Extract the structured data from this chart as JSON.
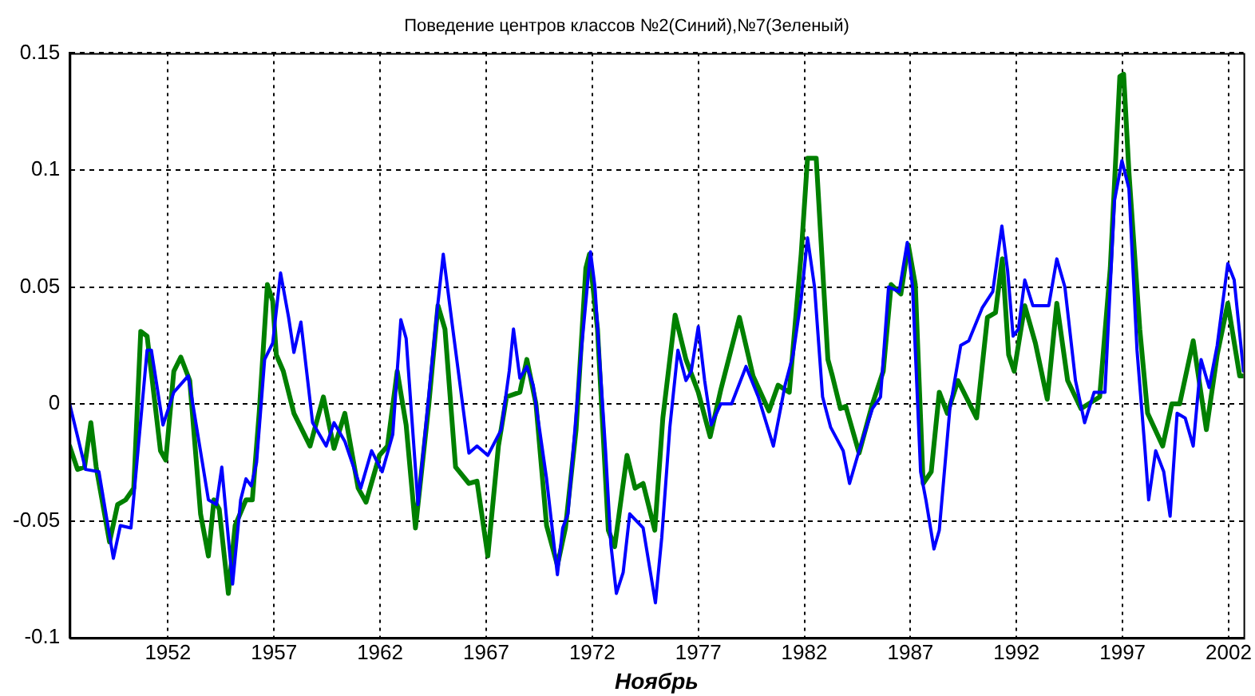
{
  "chart_data": {
    "type": "line",
    "title": "Поведение центров классов №2(Синий),№7(Зеленый)",
    "xlabel": "Ноябрь",
    "xlim": [
      1947.37,
      2002.7
    ],
    "xticks": [
      1952,
      1957,
      1962,
      1967,
      1972,
      1977,
      1982,
      1987,
      1992,
      1997,
      2002
    ],
    "ylim": [
      -0.1,
      0.15
    ],
    "yticks": [
      -0.1,
      -0.05,
      0,
      0.05,
      0.1,
      0.15
    ],
    "grid": true,
    "line_style": "solid",
    "series": [
      {
        "color": "#0000ff",
        "x": [
          1947.37,
          1948.12,
          1948.75,
          1949.43,
          1949.76,
          1950.26,
          1951.02,
          1951.22,
          1951.77,
          1952.28,
          1952.96,
          1953.91,
          1954.29,
          1954.54,
          1955.05,
          1955.43,
          1955.68,
          1955.93,
          1956.18,
          1956.56,
          1956.94,
          1957.31,
          1957.69,
          1957.94,
          1958.27,
          1958.82,
          1959.46,
          1959.83,
          1960.34,
          1961.09,
          1961.6,
          1962.1,
          1962.6,
          1962.98,
          1963.23,
          1963.79,
          1964.68,
          1964.98,
          1965.43,
          1966.19,
          1966.57,
          1967.08,
          1967.71,
          1968.09,
          1968.29,
          1968.59,
          1968.92,
          1969.22,
          1969.85,
          1970.36,
          1970.61,
          1970.86,
          1971.49,
          1971.92,
          1972.13,
          1972.63,
          1972.88,
          1973.14,
          1973.46,
          1973.77,
          1974.4,
          1974.98,
          1975.28,
          1975.66,
          1976.04,
          1976.42,
          1976.67,
          1977.0,
          1977.3,
          1977.61,
          1978.06,
          1978.57,
          1979.25,
          1979.83,
          1980.54,
          1981.09,
          1981.47,
          1981.85,
          1982.15,
          1982.48,
          1982.86,
          1983.24,
          1983.83,
          1984.13,
          1984.58,
          1985.21,
          1985.59,
          1985.97,
          1986.47,
          1986.85,
          1987.1,
          1987.48,
          1987.73,
          1988.11,
          1988.36,
          1988.86,
          1989.37,
          1989.75,
          1990.38,
          1990.88,
          1991.31,
          1991.58,
          1991.84,
          1992.09,
          1992.39,
          1992.77,
          1993.52,
          1993.9,
          1994.28,
          1994.78,
          1995.21,
          1995.66,
          1996.17,
          1996.62,
          1996.97,
          1997.3,
          1997.68,
          1998.06,
          1998.23,
          1998.56,
          1998.94,
          1999.24,
          1999.57,
          1999.95,
          2000.33,
          2000.7,
          2001.08,
          2001.46,
          2001.96,
          2002.26,
          2002.7
        ],
        "values": [
          0.0,
          -0.028,
          -0.029,
          -0.066,
          -0.052,
          -0.053,
          0.023,
          0.023,
          -0.009,
          0.005,
          0.012,
          -0.041,
          -0.043,
          -0.027,
          -0.077,
          -0.041,
          -0.032,
          -0.035,
          -0.025,
          0.019,
          0.026,
          0.056,
          0.037,
          0.022,
          0.035,
          -0.008,
          -0.018,
          -0.008,
          -0.016,
          -0.036,
          -0.02,
          -0.029,
          -0.013,
          0.036,
          0.028,
          -0.043,
          0.039,
          0.064,
          0.032,
          -0.021,
          -0.018,
          -0.022,
          -0.011,
          0.014,
          0.032,
          0.011,
          0.016,
          0.008,
          -0.032,
          -0.073,
          -0.053,
          -0.047,
          0.023,
          0.065,
          0.05,
          -0.02,
          -0.06,
          -0.081,
          -0.072,
          -0.047,
          -0.053,
          -0.085,
          -0.057,
          -0.01,
          0.023,
          0.01,
          0.014,
          0.033,
          0.01,
          -0.009,
          0.0,
          0.0,
          0.016,
          0.003,
          -0.018,
          0.008,
          0.021,
          0.045,
          0.071,
          0.05,
          0.003,
          -0.01,
          -0.02,
          -0.034,
          -0.02,
          -0.002,
          0.003,
          0.05,
          0.048,
          0.069,
          0.05,
          -0.029,
          -0.041,
          -0.062,
          -0.054,
          -0.002,
          0.025,
          0.027,
          0.041,
          0.048,
          0.076,
          0.057,
          0.029,
          0.032,
          0.053,
          0.042,
          0.042,
          0.062,
          0.05,
          0.01,
          -0.008,
          0.005,
          0.005,
          0.087,
          0.104,
          0.092,
          0.023,
          -0.02,
          -0.041,
          -0.02,
          -0.029,
          -0.048,
          -0.004,
          -0.006,
          -0.018,
          0.019,
          0.007,
          0.025,
          0.06,
          0.053,
          0.014
        ]
      },
      {
        "color": "#008000",
        "x": [
          1947.37,
          1947.74,
          1948.07,
          1948.37,
          1948.62,
          1949.25,
          1949.63,
          1950.01,
          1950.39,
          1950.72,
          1951.02,
          1951.65,
          1951.9,
          1952.28,
          1952.61,
          1953.03,
          1953.54,
          1953.91,
          1954.17,
          1954.42,
          1954.85,
          1955.17,
          1955.68,
          1955.98,
          1956.31,
          1956.69,
          1956.94,
          1957.11,
          1957.44,
          1957.94,
          1958.7,
          1959.33,
          1959.83,
          1960.34,
          1960.97,
          1961.34,
          1961.97,
          1962.35,
          1962.81,
          1963.23,
          1963.67,
          1964.3,
          1964.73,
          1965.06,
          1965.56,
          1966.19,
          1966.57,
          1967.08,
          1967.58,
          1967.96,
          1968.59,
          1968.92,
          1969.35,
          1969.85,
          1970.36,
          1970.74,
          1971.24,
          1971.7,
          1971.87,
          1972.25,
          1972.76,
          1973.06,
          1973.64,
          1974.02,
          1974.4,
          1974.95,
          1975.33,
          1975.91,
          1976.42,
          1977.0,
          1977.56,
          1978.06,
          1978.94,
          1979.58,
          1980.33,
          1980.76,
          1981.29,
          1981.85,
          1982.15,
          1982.56,
          1983.11,
          1983.32,
          1983.7,
          1983.95,
          1984.58,
          1985.21,
          1985.72,
          1986.09,
          1986.55,
          1986.9,
          1987.23,
          1987.6,
          1987.98,
          1988.36,
          1988.74,
          1989.24,
          1990.12,
          1990.63,
          1991.01,
          1991.33,
          1991.63,
          1991.89,
          1992.39,
          1992.89,
          1993.45,
          1993.9,
          1994.41,
          1995.04,
          1995.92,
          1996.42,
          1996.87,
          1997.05,
          1997.3,
          1997.81,
          1998.18,
          1998.89,
          1999.32,
          1999.69,
          2000.33,
          2000.95,
          2001.46,
          2001.96,
          2002.52,
          2002.7
        ],
        "values": [
          -0.018,
          -0.028,
          -0.027,
          -0.008,
          -0.027,
          -0.059,
          -0.043,
          -0.041,
          -0.036,
          0.031,
          0.029,
          -0.02,
          -0.024,
          0.014,
          0.02,
          0.01,
          -0.047,
          -0.065,
          -0.041,
          -0.045,
          -0.081,
          -0.052,
          -0.041,
          -0.041,
          -0.003,
          0.051,
          0.044,
          0.021,
          0.014,
          -0.004,
          -0.018,
          0.003,
          -0.019,
          -0.004,
          -0.036,
          -0.042,
          -0.022,
          -0.018,
          0.014,
          -0.009,
          -0.053,
          0.0,
          0.042,
          0.032,
          -0.027,
          -0.034,
          -0.033,
          -0.065,
          -0.018,
          0.003,
          0.005,
          0.019,
          0.0,
          -0.052,
          -0.069,
          -0.053,
          -0.011,
          0.058,
          0.064,
          0.032,
          -0.054,
          -0.061,
          -0.022,
          -0.036,
          -0.034,
          -0.054,
          -0.006,
          0.038,
          0.019,
          0.005,
          -0.014,
          0.006,
          0.037,
          0.012,
          -0.003,
          0.008,
          0.005,
          0.064,
          0.105,
          0.105,
          0.019,
          0.012,
          -0.002,
          -0.001,
          -0.021,
          0.0,
          0.014,
          0.051,
          0.047,
          0.068,
          0.051,
          -0.034,
          -0.029,
          0.005,
          -0.004,
          0.01,
          -0.006,
          0.037,
          0.039,
          0.062,
          0.021,
          0.014,
          0.042,
          0.026,
          0.002,
          0.043,
          0.01,
          -0.002,
          0.003,
          0.058,
          0.14,
          0.141,
          0.099,
          0.032,
          -0.004,
          -0.018,
          0.0,
          0.0,
          0.027,
          -0.011,
          0.021,
          0.043,
          0.012,
          0.012
        ]
      }
    ]
  }
}
